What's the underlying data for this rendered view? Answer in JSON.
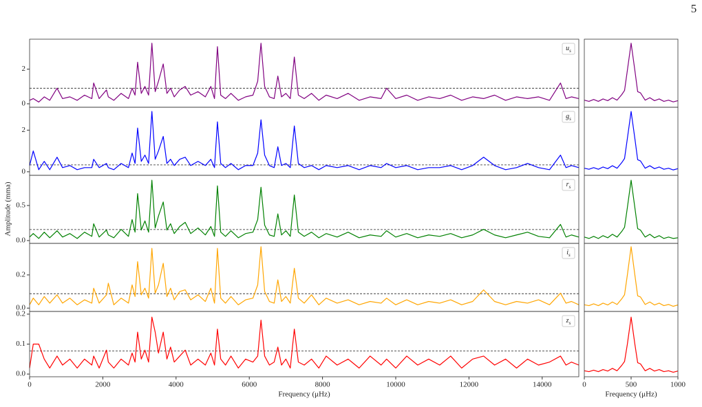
{
  "page_number": "5",
  "ylabel": "Amplitude (mma)",
  "chart_data": [
    {
      "type": "line",
      "label": "u",
      "label_sub": "s",
      "color": "#800080",
      "threshold": 0.9,
      "xlim": [
        0,
        15000
      ],
      "ylim": [
        -0.2,
        3.73
      ],
      "yticks": [
        0,
        2
      ],
      "x": [
        0,
        100,
        250,
        400,
        550,
        750,
        900,
        1100,
        1300,
        1500,
        1700,
        1750,
        1900,
        2100,
        2150,
        2300,
        2500,
        2700,
        2800,
        2880,
        2950,
        3050,
        3150,
        3250,
        3340,
        3430,
        3520,
        3650,
        3750,
        3850,
        3950,
        4100,
        4250,
        4400,
        4600,
        4800,
        4950,
        5050,
        5130,
        5220,
        5350,
        5500,
        5700,
        5900,
        6100,
        6230,
        6320,
        6420,
        6550,
        6680,
        6780,
        6880,
        7000,
        7120,
        7230,
        7340,
        7500,
        7700,
        7900,
        8100,
        8400,
        8700,
        9000,
        9300,
        9600,
        9750,
        10000,
        10300,
        10600,
        10900,
        11200,
        11500,
        11800,
        12100,
        12400,
        12700,
        13000,
        13300,
        13600,
        13900,
        14200,
        14500,
        14650,
        14800,
        15000
      ],
      "values": [
        0.2,
        0.3,
        0.1,
        0.4,
        0.2,
        0.9,
        0.3,
        0.4,
        0.2,
        0.5,
        0.3,
        1.2,
        0.3,
        0.8,
        0.4,
        0.2,
        0.6,
        0.3,
        0.9,
        0.5,
        2.4,
        0.6,
        1.0,
        0.5,
        3.5,
        0.7,
        1.3,
        2.3,
        0.6,
        0.9,
        0.4,
        0.8,
        1.0,
        0.5,
        0.7,
        0.4,
        1.0,
        0.3,
        3.3,
        0.5,
        0.3,
        0.6,
        0.2,
        0.4,
        0.5,
        1.3,
        3.5,
        1.0,
        0.4,
        0.3,
        1.6,
        0.4,
        0.6,
        0.3,
        2.7,
        0.5,
        0.3,
        0.6,
        0.2,
        0.5,
        0.3,
        0.6,
        0.2,
        0.4,
        0.3,
        0.9,
        0.3,
        0.5,
        0.2,
        0.4,
        0.3,
        0.5,
        0.2,
        0.4,
        0.3,
        0.5,
        0.2,
        0.4,
        0.3,
        0.4,
        0.2,
        1.2,
        0.3,
        0.4,
        0.3
      ]
    },
    {
      "type": "line",
      "label": "g",
      "label_sub": "s",
      "color": "#0000ff",
      "threshold": 0.33,
      "xlim": [
        0,
        15000
      ],
      "ylim": [
        -0.17,
        3.1
      ],
      "yticks": [
        0,
        2
      ],
      "x": [
        0,
        100,
        250,
        400,
        550,
        750,
        900,
        1100,
        1300,
        1500,
        1700,
        1750,
        1900,
        2100,
        2150,
        2300,
        2500,
        2700,
        2800,
        2880,
        2950,
        3050,
        3150,
        3250,
        3340,
        3430,
        3520,
        3650,
        3750,
        3850,
        3950,
        4100,
        4250,
        4400,
        4600,
        4800,
        4950,
        5050,
        5130,
        5220,
        5350,
        5500,
        5700,
        5900,
        6100,
        6230,
        6320,
        6420,
        6550,
        6680,
        6780,
        6880,
        7000,
        7120,
        7230,
        7340,
        7500,
        7700,
        7900,
        8100,
        8400,
        8700,
        9000,
        9300,
        9600,
        9750,
        10000,
        10300,
        10600,
        10900,
        11200,
        11500,
        11800,
        12100,
        12400,
        12700,
        13000,
        13300,
        13600,
        13900,
        14200,
        14500,
        14650,
        14800,
        15000
      ],
      "values": [
        0.3,
        1.0,
        0.1,
        0.5,
        0.1,
        0.7,
        0.2,
        0.3,
        0.1,
        0.2,
        0.2,
        0.6,
        0.2,
        0.4,
        0.2,
        0.1,
        0.4,
        0.2,
        0.9,
        0.4,
        2.1,
        0.5,
        0.8,
        0.4,
        2.9,
        0.6,
        1.0,
        1.7,
        0.4,
        0.6,
        0.3,
        0.6,
        0.7,
        0.3,
        0.5,
        0.3,
        0.6,
        0.2,
        2.4,
        0.4,
        0.2,
        0.4,
        0.1,
        0.3,
        0.3,
        0.9,
        2.5,
        0.8,
        0.3,
        0.2,
        1.2,
        0.3,
        0.4,
        0.2,
        2.2,
        0.4,
        0.2,
        0.3,
        0.1,
        0.3,
        0.2,
        0.3,
        0.1,
        0.3,
        0.2,
        0.4,
        0.2,
        0.3,
        0.1,
        0.2,
        0.2,
        0.3,
        0.1,
        0.3,
        0.7,
        0.3,
        0.1,
        0.2,
        0.4,
        0.2,
        0.1,
        0.8,
        0.2,
        0.3,
        0.2
      ]
    },
    {
      "type": "line",
      "label": "r",
      "label_sub": "s",
      "color": "#008000",
      "threshold": 0.157,
      "xlim": [
        0,
        15000
      ],
      "ylim": [
        -0.04,
        0.93
      ],
      "yticks": [
        {
          "value": 0,
          "label": "0.0"
        },
        0.5
      ],
      "x": [
        0,
        100,
        250,
        400,
        550,
        750,
        900,
        1100,
        1300,
        1500,
        1700,
        1750,
        1900,
        2100,
        2150,
        2300,
        2500,
        2700,
        2800,
        2880,
        2950,
        3050,
        3150,
        3250,
        3340,
        3430,
        3520,
        3650,
        3750,
        3850,
        3950,
        4100,
        4250,
        4400,
        4600,
        4800,
        4950,
        5050,
        5130,
        5220,
        5350,
        5500,
        5700,
        5900,
        6100,
        6230,
        6320,
        6420,
        6550,
        6680,
        6780,
        6880,
        7000,
        7120,
        7230,
        7340,
        7500,
        7700,
        7900,
        8100,
        8400,
        8700,
        9000,
        9300,
        9600,
        9750,
        10000,
        10300,
        10600,
        10900,
        11200,
        11500,
        11800,
        12100,
        12400,
        12700,
        13000,
        13300,
        13600,
        13900,
        14200,
        14500,
        14650,
        14800,
        15000
      ],
      "values": [
        0.05,
        0.1,
        0.03,
        0.12,
        0.04,
        0.14,
        0.05,
        0.1,
        0.03,
        0.12,
        0.06,
        0.24,
        0.05,
        0.15,
        0.08,
        0.04,
        0.16,
        0.06,
        0.3,
        0.12,
        0.67,
        0.15,
        0.28,
        0.12,
        0.86,
        0.18,
        0.35,
        0.55,
        0.15,
        0.24,
        0.1,
        0.2,
        0.26,
        0.1,
        0.18,
        0.08,
        0.2,
        0.06,
        0.78,
        0.12,
        0.06,
        0.14,
        0.04,
        0.1,
        0.12,
        0.3,
        0.76,
        0.22,
        0.08,
        0.06,
        0.38,
        0.08,
        0.14,
        0.06,
        0.65,
        0.12,
        0.06,
        0.12,
        0.04,
        0.1,
        0.05,
        0.12,
        0.04,
        0.08,
        0.06,
        0.14,
        0.05,
        0.1,
        0.04,
        0.08,
        0.06,
        0.1,
        0.04,
        0.08,
        0.16,
        0.08,
        0.04,
        0.08,
        0.12,
        0.06,
        0.04,
        0.23,
        0.05,
        0.08,
        0.05
      ]
    },
    {
      "type": "line",
      "label": "i",
      "label_sub": "s",
      "color": "#ffa500",
      "threshold": 0.087,
      "xlim": [
        0,
        15000
      ],
      "ylim": [
        -0.02,
        0.39
      ],
      "yticks": [
        {
          "value": 0,
          "label": "0.0"
        },
        0.2
      ],
      "x": [
        0,
        100,
        250,
        400,
        550,
        750,
        900,
        1100,
        1300,
        1500,
        1700,
        1750,
        1900,
        2100,
        2150,
        2300,
        2500,
        2700,
        2800,
        2880,
        2950,
        3050,
        3150,
        3250,
        3340,
        3430,
        3520,
        3650,
        3750,
        3850,
        3950,
        4100,
        4250,
        4400,
        4600,
        4800,
        4950,
        5050,
        5130,
        5220,
        5350,
        5500,
        5700,
        5900,
        6100,
        6230,
        6320,
        6420,
        6550,
        6680,
        6780,
        6880,
        7000,
        7120,
        7230,
        7340,
        7500,
        7700,
        7900,
        8100,
        8400,
        8700,
        9000,
        9300,
        9600,
        9750,
        10000,
        10300,
        10600,
        10900,
        11200,
        11500,
        11800,
        12100,
        12400,
        12700,
        13000,
        13300,
        13600,
        13900,
        14200,
        14500,
        14650,
        14800,
        15000
      ],
      "values": [
        0.02,
        0.06,
        0.02,
        0.07,
        0.03,
        0.08,
        0.03,
        0.06,
        0.02,
        0.05,
        0.03,
        0.12,
        0.03,
        0.08,
        0.15,
        0.02,
        0.06,
        0.03,
        0.14,
        0.07,
        0.28,
        0.08,
        0.12,
        0.06,
        0.36,
        0.09,
        0.14,
        0.27,
        0.07,
        0.12,
        0.05,
        0.1,
        0.11,
        0.05,
        0.08,
        0.04,
        0.12,
        0.03,
        0.36,
        0.06,
        0.03,
        0.07,
        0.02,
        0.05,
        0.06,
        0.14,
        0.37,
        0.1,
        0.04,
        0.03,
        0.17,
        0.04,
        0.07,
        0.03,
        0.24,
        0.06,
        0.03,
        0.08,
        0.02,
        0.06,
        0.03,
        0.05,
        0.02,
        0.04,
        0.03,
        0.06,
        0.02,
        0.05,
        0.02,
        0.04,
        0.03,
        0.05,
        0.02,
        0.04,
        0.11,
        0.04,
        0.02,
        0.04,
        0.03,
        0.05,
        0.02,
        0.09,
        0.03,
        0.04,
        0.02
      ]
    },
    {
      "type": "line",
      "label": "z",
      "label_sub": "s",
      "color": "#ff0000",
      "threshold": 0.077,
      "xlim": [
        0,
        15000
      ],
      "ylim": [
        -0.009,
        0.209
      ],
      "yticks": [
        {
          "value": 0,
          "label": "0.0"
        },
        0.1,
        0.2
      ],
      "xticks": [
        0,
        2000,
        4000,
        6000,
        8000,
        10000,
        12000,
        14000
      ],
      "xlabel": "Frequency (μHz)",
      "x": [
        0,
        100,
        250,
        400,
        550,
        750,
        900,
        1100,
        1300,
        1500,
        1700,
        1750,
        1900,
        2100,
        2150,
        2300,
        2500,
        2700,
        2800,
        2880,
        2950,
        3050,
        3150,
        3250,
        3340,
        3430,
        3520,
        3650,
        3750,
        3850,
        3950,
        4100,
        4250,
        4400,
        4600,
        4800,
        4950,
        5050,
        5130,
        5220,
        5350,
        5500,
        5700,
        5900,
        6100,
        6230,
        6320,
        6420,
        6550,
        6680,
        6780,
        6880,
        7000,
        7120,
        7230,
        7340,
        7500,
        7700,
        7900,
        8100,
        8400,
        8700,
        9000,
        9300,
        9600,
        9750,
        10000,
        10300,
        10600,
        10900,
        11200,
        11500,
        11800,
        12100,
        12400,
        12700,
        13000,
        13300,
        13600,
        13900,
        14200,
        14500,
        14650,
        14800,
        15000
      ],
      "values": [
        0.02,
        0.1,
        0.1,
        0.05,
        0.02,
        0.06,
        0.03,
        0.05,
        0.02,
        0.05,
        0.03,
        0.06,
        0.02,
        0.08,
        0.04,
        0.02,
        0.05,
        0.03,
        0.07,
        0.04,
        0.14,
        0.05,
        0.08,
        0.04,
        0.19,
        0.14,
        0.07,
        0.14,
        0.05,
        0.09,
        0.04,
        0.06,
        0.08,
        0.03,
        0.05,
        0.03,
        0.07,
        0.03,
        0.15,
        0.05,
        0.03,
        0.06,
        0.02,
        0.05,
        0.04,
        0.06,
        0.18,
        0.06,
        0.03,
        0.04,
        0.09,
        0.03,
        0.05,
        0.02,
        0.15,
        0.04,
        0.03,
        0.05,
        0.02,
        0.06,
        0.03,
        0.05,
        0.02,
        0.06,
        0.03,
        0.05,
        0.02,
        0.06,
        0.03,
        0.05,
        0.03,
        0.06,
        0.02,
        0.05,
        0.06,
        0.03,
        0.05,
        0.02,
        0.05,
        0.03,
        0.04,
        0.06,
        0.03,
        0.04,
        0.03
      ]
    },
    {
      "type": "line",
      "color": "#800080",
      "xlim": [
        0,
        1000
      ],
      "ylim": [
        -0.2,
        3.73
      ],
      "x": [
        0,
        50,
        100,
        150,
        200,
        250,
        300,
        350,
        400,
        430,
        460,
        500,
        540,
        570,
        600,
        650,
        700,
        750,
        800,
        850,
        900,
        950,
        1000
      ],
      "values": [
        0.21,
        0.14,
        0.25,
        0.14,
        0.28,
        0.18,
        0.35,
        0.21,
        0.53,
        0.77,
        1.93,
        3.5,
        1.93,
        0.7,
        0.63,
        0.21,
        0.35,
        0.18,
        0.28,
        0.14,
        0.21,
        0.11,
        0.18
      ]
    },
    {
      "type": "line",
      "color": "#0000ff",
      "xlim": [
        0,
        1000
      ],
      "ylim": [
        -0.17,
        3.1
      ],
      "x": [
        0,
        50,
        100,
        150,
        200,
        250,
        300,
        350,
        400,
        430,
        460,
        500,
        540,
        570,
        600,
        650,
        700,
        750,
        800,
        850,
        900,
        950,
        1000
      ],
      "values": [
        0.17,
        0.12,
        0.2,
        0.12,
        0.23,
        0.15,
        0.29,
        0.17,
        0.44,
        0.64,
        1.6,
        2.9,
        1.6,
        0.58,
        0.52,
        0.17,
        0.29,
        0.15,
        0.23,
        0.12,
        0.17,
        0.09,
        0.15
      ]
    },
    {
      "type": "line",
      "color": "#008000",
      "xlim": [
        0,
        1000
      ],
      "ylim": [
        -0.04,
        0.93
      ],
      "x": [
        0,
        50,
        100,
        150,
        200,
        250,
        300,
        350,
        400,
        430,
        460,
        500,
        540,
        570,
        600,
        650,
        700,
        750,
        800,
        850,
        900,
        950,
        1000
      ],
      "values": [
        0.05,
        0.03,
        0.06,
        0.03,
        0.07,
        0.04,
        0.09,
        0.05,
        0.13,
        0.19,
        0.47,
        0.86,
        0.47,
        0.17,
        0.15,
        0.05,
        0.09,
        0.04,
        0.07,
        0.03,
        0.05,
        0.03,
        0.04
      ]
    },
    {
      "type": "line",
      "color": "#ffa500",
      "xlim": [
        0,
        1000
      ],
      "ylim": [
        -0.02,
        0.39
      ],
      "x": [
        0,
        50,
        100,
        150,
        200,
        250,
        300,
        350,
        400,
        430,
        460,
        500,
        540,
        570,
        600,
        650,
        700,
        750,
        800,
        850,
        900,
        950,
        1000
      ],
      "values": [
        0.02,
        0.015,
        0.026,
        0.015,
        0.03,
        0.019,
        0.037,
        0.022,
        0.056,
        0.081,
        0.2,
        0.37,
        0.2,
        0.074,
        0.067,
        0.022,
        0.037,
        0.019,
        0.03,
        0.015,
        0.022,
        0.011,
        0.019
      ]
    },
    {
      "type": "line",
      "color": "#ff0000",
      "xlim": [
        0,
        1000
      ],
      "ylim": [
        -0.009,
        0.209
      ],
      "xticks": [
        0,
        500,
        1000
      ],
      "xlabel": "Frequency (μHz)",
      "x": [
        0,
        50,
        100,
        150,
        200,
        250,
        300,
        350,
        400,
        430,
        460,
        500,
        540,
        570,
        600,
        650,
        700,
        750,
        800,
        850,
        900,
        950,
        1000
      ],
      "values": [
        0.011,
        0.008,
        0.013,
        0.008,
        0.015,
        0.01,
        0.019,
        0.011,
        0.029,
        0.042,
        0.1,
        0.19,
        0.1,
        0.038,
        0.034,
        0.011,
        0.019,
        0.01,
        0.015,
        0.008,
        0.011,
        0.006,
        0.01
      ]
    }
  ]
}
